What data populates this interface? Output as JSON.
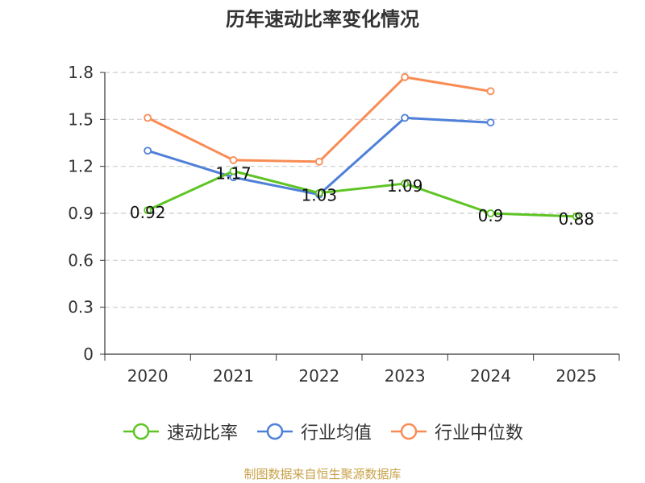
{
  "chart_data": {
    "type": "line",
    "title": "历年速动比率变化情况",
    "categories": [
      "2020",
      "2021",
      "2022",
      "2023",
      "2024",
      "2025"
    ],
    "series": [
      {
        "name": "速动比率",
        "color": "#5ec424",
        "values": [
          0.92,
          1.17,
          1.03,
          1.09,
          0.9,
          0.88
        ],
        "labels": [
          "0.92",
          "1.17",
          "1.03",
          "1.09",
          "0.9",
          "0.88"
        ]
      },
      {
        "name": "行业均值",
        "color": "#4f80d8",
        "values": [
          1.3,
          1.13,
          1.02,
          1.51,
          1.48,
          null
        ]
      },
      {
        "name": "行业中位数",
        "color": "#f98c55",
        "values": [
          1.51,
          1.24,
          1.23,
          1.77,
          1.68,
          null
        ]
      }
    ],
    "yticks": [
      "0",
      "0.3",
      "0.6",
      "0.9",
      "1.2",
      "1.5",
      "1.8"
    ],
    "ylim": [
      0,
      1.8
    ],
    "grid": true,
    "legend_position": "bottom"
  },
  "source": "制图数据来自恒生聚源数据库"
}
